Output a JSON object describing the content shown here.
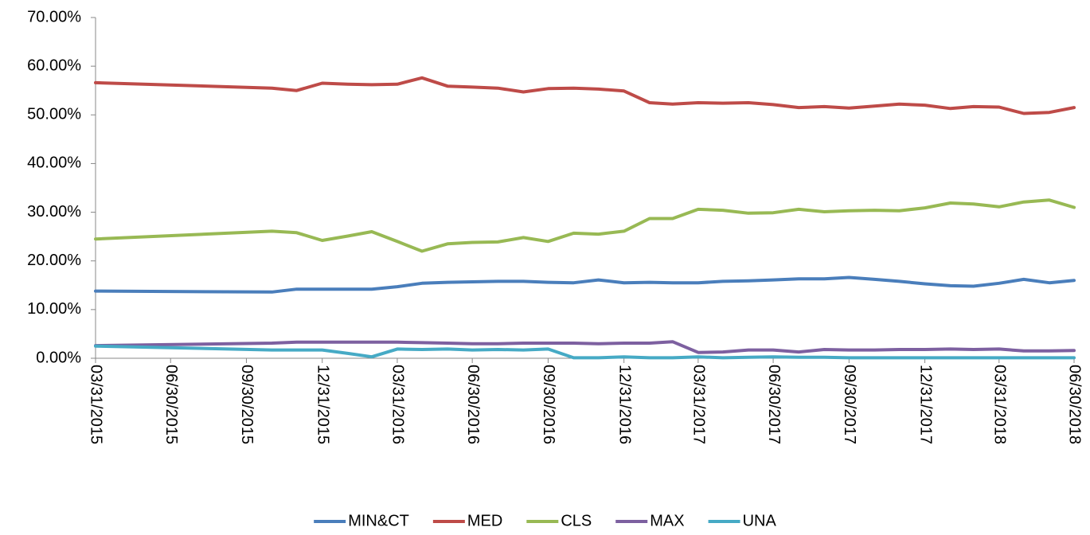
{
  "chart_data": {
    "type": "line",
    "x": [
      "03/31/2015",
      "10/31/2015",
      "11/30/2015",
      "12/31/2015",
      "01/31/2016",
      "02/29/2016",
      "03/31/2016",
      "04/30/2016",
      "05/31/2016",
      "06/30/2016",
      "07/31/2016",
      "08/31/2016",
      "09/30/2016",
      "10/31/2016",
      "11/30/2016",
      "12/31/2016",
      "01/31/2017",
      "02/28/2017",
      "03/31/2017",
      "04/30/2017",
      "05/31/2017",
      "06/30/2017",
      "07/31/2017",
      "08/31/2017",
      "09/30/2017",
      "10/31/2017",
      "11/30/2017",
      "12/31/2017",
      "01/31/2018",
      "02/28/2018",
      "03/31/2018",
      "04/30/2018",
      "05/31/2018",
      "06/30/2018"
    ],
    "series": [
      {
        "name": "MIN&CT",
        "color": "#4a7ebb",
        "values": [
          13.8,
          13.6,
          14.2,
          14.2,
          14.2,
          14.2,
          14.7,
          15.4,
          15.6,
          15.7,
          15.8,
          15.8,
          15.6,
          15.5,
          16.1,
          15.5,
          15.6,
          15.5,
          15.5,
          15.8,
          15.9,
          16.1,
          16.3,
          16.3,
          16.6,
          16.2,
          15.8,
          15.3,
          14.9,
          14.8,
          15.4,
          16.2,
          15.5,
          16.0
        ]
      },
      {
        "name": "MED",
        "color": "#be4b48",
        "values": [
          56.6,
          55.5,
          55.0,
          56.5,
          56.3,
          56.2,
          56.3,
          57.6,
          55.9,
          55.7,
          55.5,
          54.7,
          55.4,
          55.5,
          55.3,
          54.9,
          52.5,
          52.2,
          52.5,
          52.4,
          52.5,
          52.1,
          51.5,
          51.7,
          51.4,
          51.8,
          52.2,
          52.0,
          51.3,
          51.7,
          51.6,
          50.3,
          50.5,
          51.5
        ]
      },
      {
        "name": "CLS",
        "color": "#98b954",
        "values": [
          24.5,
          26.1,
          25.8,
          24.2,
          25.1,
          26.0,
          24.0,
          22.0,
          23.5,
          23.8,
          23.9,
          24.8,
          24.0,
          25.7,
          25.5,
          26.1,
          28.7,
          28.7,
          30.6,
          30.4,
          29.8,
          29.9,
          30.6,
          30.1,
          30.3,
          30.4,
          30.3,
          30.9,
          31.9,
          31.7,
          31.1,
          32.1,
          32.5,
          31.0
        ]
      },
      {
        "name": "MAX",
        "color": "#7d60a0",
        "values": [
          2.6,
          3.1,
          3.3,
          3.3,
          3.3,
          3.3,
          3.3,
          3.2,
          3.1,
          3.0,
          3.0,
          3.1,
          3.1,
          3.1,
          3.0,
          3.1,
          3.1,
          3.4,
          1.2,
          1.3,
          1.7,
          1.7,
          1.3,
          1.8,
          1.7,
          1.7,
          1.8,
          1.8,
          1.9,
          1.8,
          1.9,
          1.5,
          1.5,
          1.6
        ]
      },
      {
        "name": "UNA",
        "color": "#46aac5",
        "values": [
          2.5,
          1.7,
          1.7,
          1.7,
          1.0,
          0.3,
          1.9,
          1.8,
          1.9,
          1.7,
          1.8,
          1.7,
          1.9,
          0.1,
          0.1,
          0.3,
          0.1,
          0.1,
          0.3,
          0.1,
          0.2,
          0.3,
          0.2,
          0.2,
          0.1,
          0.1,
          0.1,
          0.1,
          0.1,
          0.1,
          0.1,
          0.1,
          0.1,
          0.1
        ]
      }
    ],
    "xlim": [
      "03/31/2015",
      "06/30/2018"
    ],
    "xticks": [
      "03/31/2015",
      "06/30/2015",
      "09/30/2015",
      "12/31/2015",
      "03/31/2016",
      "06/30/2016",
      "09/30/2016",
      "12/31/2016",
      "03/31/2017",
      "06/30/2017",
      "09/30/2017",
      "12/31/2017",
      "03/31/2018",
      "06/30/2018"
    ],
    "ylim": [
      0,
      70
    ],
    "yticks": [
      {
        "value": 0,
        "label": "0.00%"
      },
      {
        "value": 10,
        "label": "10.00%"
      },
      {
        "value": 20,
        "label": "20.00%"
      },
      {
        "value": 30,
        "label": "30.00%"
      },
      {
        "value": 40,
        "label": "40.00%"
      },
      {
        "value": 50,
        "label": "50.00%"
      },
      {
        "value": 60,
        "label": "60.00%"
      },
      {
        "value": 70,
        "label": "70.00%"
      }
    ],
    "grid": false,
    "legend": "bottom"
  }
}
